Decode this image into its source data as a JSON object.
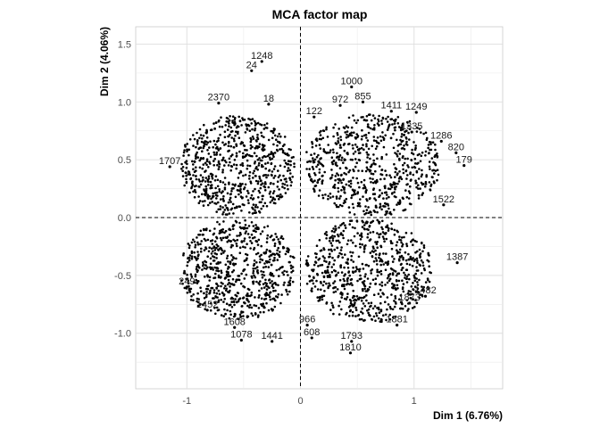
{
  "chart_data": {
    "type": "scatter",
    "title": "MCA factor map",
    "xlabel": "Dim 1 (6.76%)",
    "ylabel": "Dim 2 (4.06%)",
    "xlim": [
      -1.45,
      1.78
    ],
    "ylim": [
      -1.48,
      1.65
    ],
    "xticks": [
      -1,
      0,
      1
    ],
    "yticks": [
      -1.0,
      -0.5,
      0.0,
      0.5,
      1.0,
      1.5
    ],
    "xtick_labels": [
      "-1",
      "0",
      "1"
    ],
    "ytick_labels": [
      "-1.0",
      "-0.5",
      "0.0",
      "0.5",
      "1.0",
      "1.5"
    ],
    "grid": true,
    "reference_lines": {
      "x": 0,
      "y": 0,
      "style": "dashed"
    },
    "point_color": "#000000",
    "labeled_points": [
      {
        "label": "1248",
        "x": -0.34,
        "y": 1.35
      },
      {
        "label": "24",
        "x": -0.43,
        "y": 1.27
      },
      {
        "label": "1000",
        "x": 0.45,
        "y": 1.13
      },
      {
        "label": "855",
        "x": 0.55,
        "y": 1.0
      },
      {
        "label": "972",
        "x": 0.35,
        "y": 0.97
      },
      {
        "label": "1411",
        "x": 0.8,
        "y": 0.92
      },
      {
        "label": "1249",
        "x": 1.02,
        "y": 0.91
      },
      {
        "label": "18",
        "x": -0.28,
        "y": 0.98
      },
      {
        "label": "122",
        "x": 0.12,
        "y": 0.87
      },
      {
        "label": "1335",
        "x": 0.98,
        "y": 0.74
      },
      {
        "label": "1286",
        "x": 1.24,
        "y": 0.66
      },
      {
        "label": "820",
        "x": 1.37,
        "y": 0.56
      },
      {
        "label": "179",
        "x": 1.44,
        "y": 0.45
      },
      {
        "label": "1522",
        "x": 1.26,
        "y": 0.11
      },
      {
        "label": "1387",
        "x": 1.38,
        "y": -0.39
      },
      {
        "label": "1482",
        "x": 1.1,
        "y": -0.68
      },
      {
        "label": "1873",
        "x": 0.96,
        "y": -0.74
      },
      {
        "label": "1881",
        "x": 0.85,
        "y": -0.93
      },
      {
        "label": "1793",
        "x": 0.45,
        "y": -1.07
      },
      {
        "label": "1810",
        "x": 0.44,
        "y": -1.17
      },
      {
        "label": "966",
        "x": 0.06,
        "y": -0.93
      },
      {
        "label": "608",
        "x": 0.1,
        "y": -1.04
      },
      {
        "label": "1452",
        "x": -0.82,
        "y": -0.8
      },
      {
        "label": "1608",
        "x": -0.58,
        "y": -0.95
      },
      {
        "label": "1078",
        "x": -0.52,
        "y": -1.06
      },
      {
        "label": "1441",
        "x": -0.25,
        "y": -1.07
      },
      {
        "label": "249",
        "x": -1.0,
        "y": -0.6
      },
      {
        "label": "1707",
        "x": -1.15,
        "y": 0.44
      },
      {
        "label": "2370",
        "x": -0.72,
        "y": 0.99
      }
    ],
    "clusters": [
      {
        "x_range": [
          -1.05,
          -0.05
        ],
        "y_range": [
          0.02,
          0.88
        ],
        "count": 700
      },
      {
        "x_range": [
          0.05,
          1.22
        ],
        "y_range": [
          0.02,
          0.9
        ],
        "count": 700
      },
      {
        "x_range": [
          -1.05,
          -0.05
        ],
        "y_range": [
          -0.88,
          -0.02
        ],
        "count": 700
      },
      {
        "x_range": [
          0.05,
          1.15
        ],
        "y_range": [
          -0.9,
          -0.02
        ],
        "count": 700
      }
    ]
  }
}
